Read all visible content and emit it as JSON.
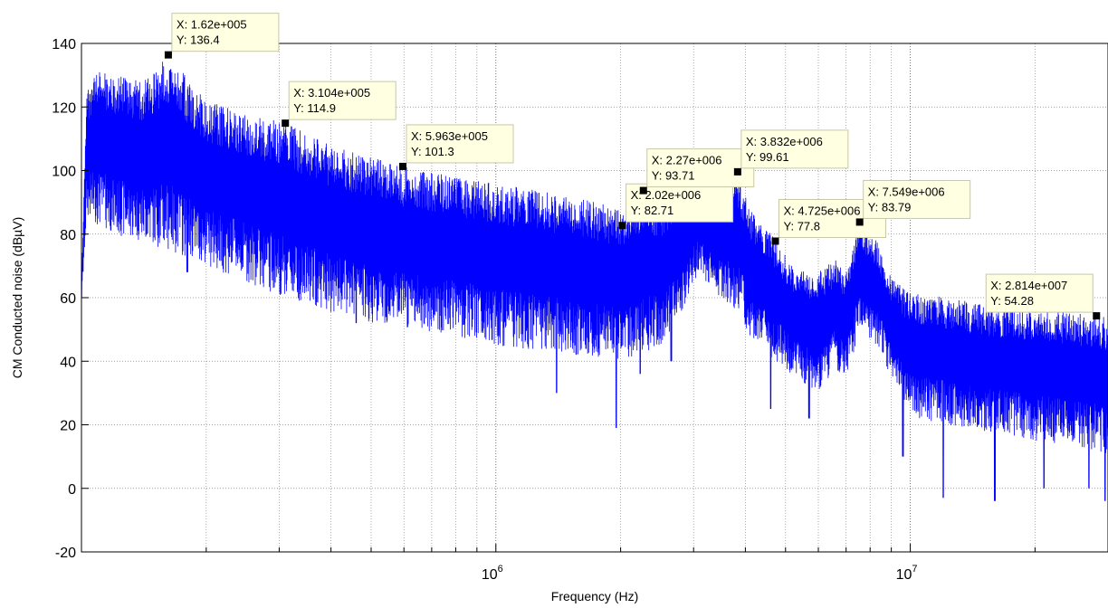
{
  "chart_data": {
    "type": "line",
    "title": "",
    "xlabel": "Frequency (Hz)",
    "ylabel": "CM Conducted noise (dBµV)",
    "xscale": "log",
    "xlim": [
      100000,
      30000000
    ],
    "ylim": [
      -20,
      140
    ],
    "yticks": [
      "-20",
      "0",
      "20",
      "40",
      "60",
      "80",
      "100",
      "120",
      "140"
    ],
    "xticks": [
      {
        "base": "10",
        "exp": "6",
        "value": 1000000
      },
      {
        "base": "10",
        "exp": "7",
        "value": 10000000
      }
    ],
    "grid": true,
    "line_color": "#0000ff",
    "series": [
      {
        "envelope_upper": [
          [
            100000,
            65
          ],
          [
            103000,
            125
          ],
          [
            110000,
            132
          ],
          [
            120000,
            130
          ],
          [
            140000,
            128
          ],
          [
            162000,
            136.4
          ],
          [
            200000,
            122
          ],
          [
            250000,
            118
          ],
          [
            310400,
            114.9
          ],
          [
            400000,
            108
          ],
          [
            596300,
            101.3
          ],
          [
            800000,
            98
          ],
          [
            1000000,
            96
          ],
          [
            1500000,
            92
          ],
          [
            2020000,
            88
          ],
          [
            2270000,
            93.71
          ],
          [
            2500000,
            90
          ],
          [
            2800000,
            94
          ],
          [
            3100000,
            100
          ],
          [
            3400000,
            97
          ],
          [
            3832000,
            99.61
          ],
          [
            4100000,
            88
          ],
          [
            4725000,
            79
          ],
          [
            5200000,
            70
          ],
          [
            6000000,
            68
          ],
          [
            6600000,
            72
          ],
          [
            7000000,
            68
          ],
          [
            7549000,
            83.79
          ],
          [
            8300000,
            78
          ],
          [
            9000000,
            66
          ],
          [
            10000000,
            62
          ],
          [
            15000000,
            58
          ],
          [
            20000000,
            57
          ],
          [
            28140000,
            54.28
          ],
          [
            30000000,
            54
          ]
        ],
        "envelope_lower": [
          [
            100000,
            58
          ],
          [
            103000,
            85
          ],
          [
            120000,
            80
          ],
          [
            162000,
            75
          ],
          [
            200000,
            70
          ],
          [
            250000,
            65
          ],
          [
            310400,
            60
          ],
          [
            400000,
            55
          ],
          [
            596300,
            50
          ],
          [
            800000,
            48
          ],
          [
            1000000,
            45
          ],
          [
            1500000,
            42
          ],
          [
            2020000,
            40
          ],
          [
            2500000,
            45
          ],
          [
            2800000,
            55
          ],
          [
            3100000,
            68
          ],
          [
            3400000,
            60
          ],
          [
            3832000,
            55
          ],
          [
            4100000,
            48
          ],
          [
            4725000,
            40
          ],
          [
            5200000,
            35
          ],
          [
            6000000,
            30
          ],
          [
            6600000,
            38
          ],
          [
            7000000,
            34
          ],
          [
            7549000,
            50
          ],
          [
            8300000,
            45
          ],
          [
            9000000,
            35
          ],
          [
            10000000,
            22
          ],
          [
            15000000,
            18
          ],
          [
            20000000,
            15
          ],
          [
            28140000,
            12
          ],
          [
            30000000,
            10
          ]
        ],
        "spikes_down": [
          [
            180000,
            68
          ],
          [
            280000,
            72
          ],
          [
            460000,
            52
          ],
          [
            1400000,
            30
          ],
          [
            1950000,
            19
          ],
          [
            2230000,
            36
          ],
          [
            2650000,
            40
          ],
          [
            4600000,
            25
          ],
          [
            5700000,
            22
          ],
          [
            9600000,
            10
          ],
          [
            12000000,
            -3
          ],
          [
            16000000,
            -4
          ],
          [
            21000000,
            0
          ],
          [
            27000000,
            0
          ],
          [
            29500000,
            -4
          ]
        ]
      }
    ],
    "datatips": [
      {
        "x": 162000,
        "y": 136.4,
        "xtext": "X: 1.62e+005",
        "ytext": "Y: 136.4"
      },
      {
        "x": 310400,
        "y": 114.9,
        "xtext": "X: 3.104e+005",
        "ytext": "Y: 114.9"
      },
      {
        "x": 596300,
        "y": 101.3,
        "xtext": "X: 5.963e+005",
        "ytext": "Y: 101.3"
      },
      {
        "x": 2020000,
        "y": 82.71,
        "xtext": "X: 2.02e+006",
        "ytext": "Y: 82.71"
      },
      {
        "x": 2270000,
        "y": 93.71,
        "xtext": "X: 2.27e+006",
        "ytext": "Y: 93.71"
      },
      {
        "x": 3832000,
        "y": 99.61,
        "xtext": "X: 3.832e+006",
        "ytext": "Y: 99.61"
      },
      {
        "x": 4725000,
        "y": 77.8,
        "xtext": "X: 4.725e+006",
        "ytext": "Y: 77.8"
      },
      {
        "x": 7549000,
        "y": 83.79,
        "xtext": "X: 7.549e+006",
        "ytext": "Y: 83.79"
      },
      {
        "x": 28140000,
        "y": 54.28,
        "xtext": "X: 2.814e+007",
        "ytext": "Y: 54.28"
      }
    ]
  }
}
